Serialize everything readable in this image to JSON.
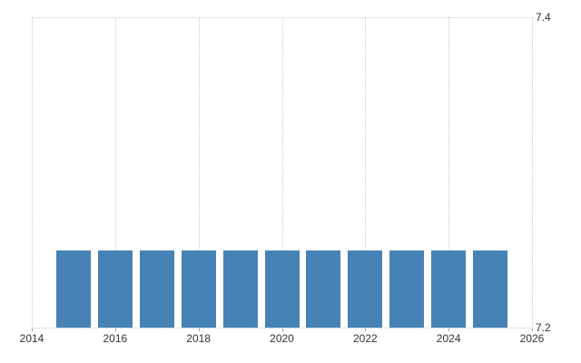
{
  "chart": {
    "background_color": "#ffffff",
    "bar_color": "#4682b4",
    "grid_color": "#cccccc",
    "tick_color": "#999999",
    "label_color": "#333333"
  },
  "chart_data": {
    "type": "bar",
    "categories": [
      2015,
      2016,
      2017,
      2018,
      2019,
      2020,
      2021,
      2022,
      2023,
      2024,
      2025
    ],
    "values": [
      7.25,
      7.25,
      7.25,
      7.25,
      7.25,
      7.25,
      7.25,
      7.25,
      7.25,
      7.25,
      7.25
    ],
    "title": "",
    "xlabel": "",
    "ylabel": "",
    "xlim": [
      2014,
      2026
    ],
    "ylim": [
      7.2,
      7.4
    ],
    "x_ticks": [
      2014,
      2016,
      2018,
      2020,
      2022,
      2024,
      2026
    ],
    "x_tick_labels": [
      "2014",
      "2016",
      "2018",
      "2020",
      "2022",
      "2024",
      "2026"
    ],
    "y_ticks": [
      7.2,
      7.4
    ],
    "y_tick_labels": [
      "7.2",
      "7.4"
    ],
    "grid": "vertical dotted lines at x ticks; horizontal dotted lines at ylim top and bottom",
    "legend_position": "none"
  }
}
